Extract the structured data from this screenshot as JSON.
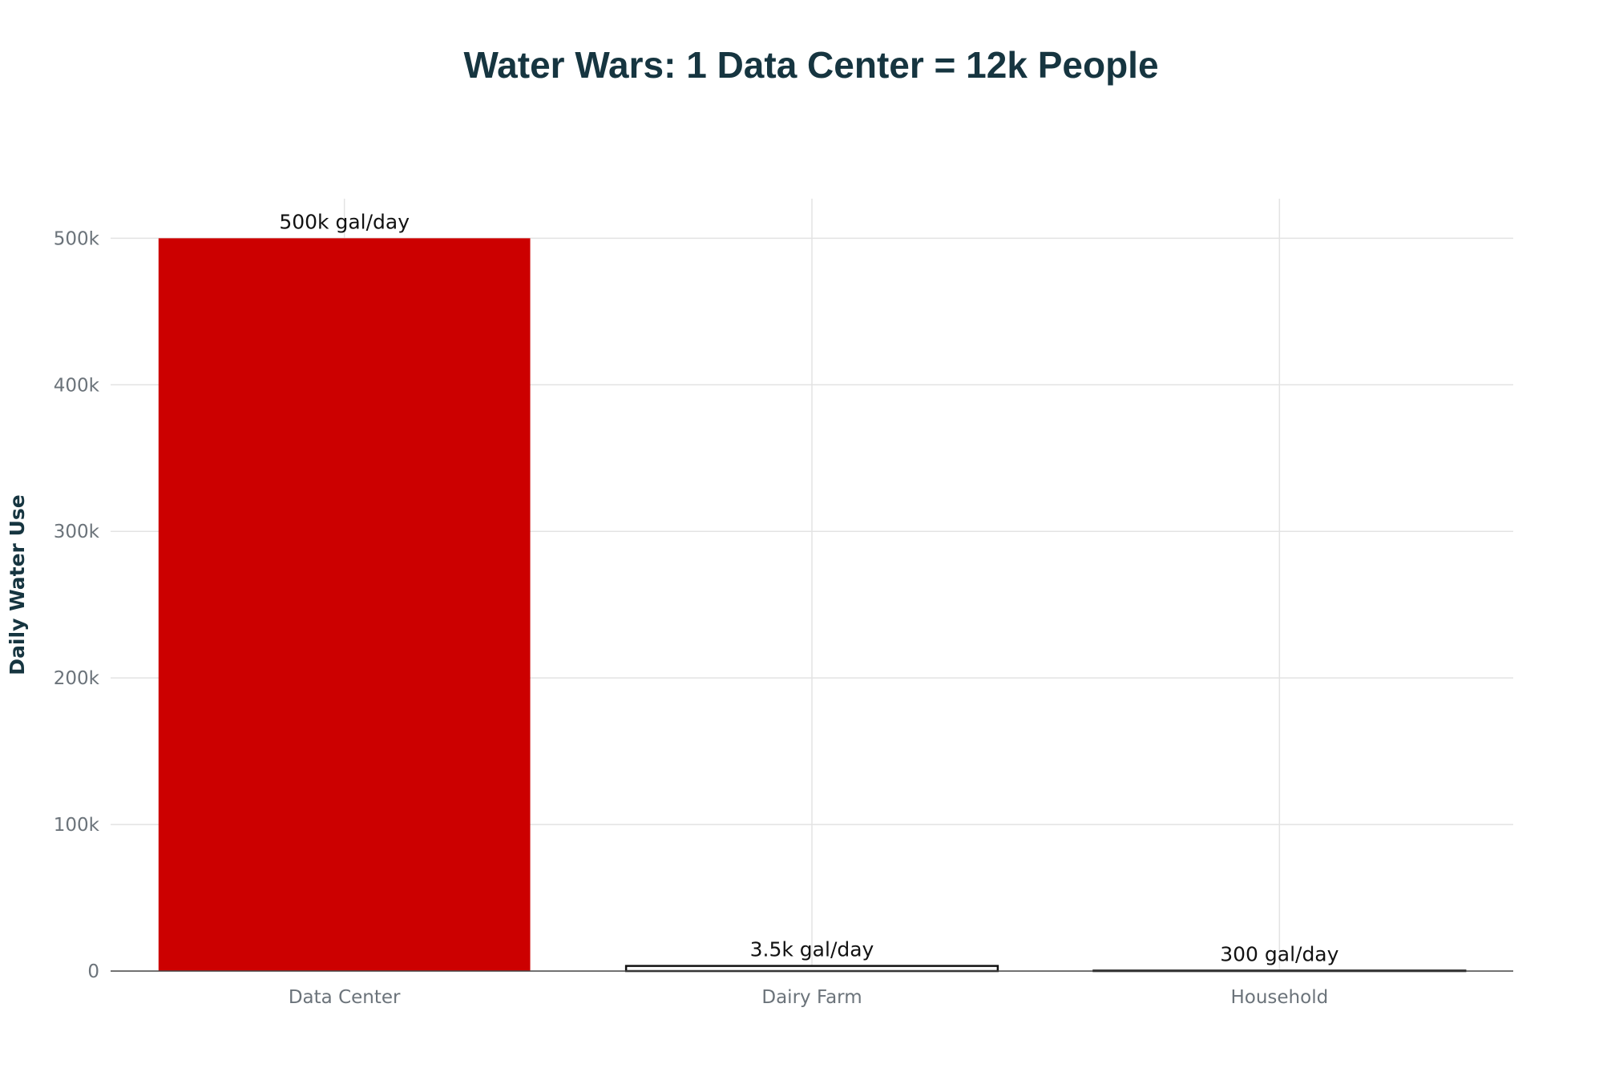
{
  "chart_data": {
    "type": "bar",
    "title": "Water Wars: 1 Data Center = 12k People",
    "xlabel": "",
    "ylabel": "Daily Water Use",
    "categories": [
      "Data Center",
      "Dairy Farm",
      "Household"
    ],
    "values": [
      500000,
      3500,
      300
    ],
    "data_labels": [
      "500k gal/day",
      "3.5k gal/day",
      "300 gal/day"
    ],
    "bar_colors": [
      "#cc0000",
      "#ffffff",
      "#ffffff"
    ],
    "bar_outline_colors": [
      "#cc0000",
      "#111111",
      "#111111"
    ],
    "ylim": [
      0,
      527000
    ],
    "yticks": [
      0,
      100000,
      200000,
      300000,
      400000,
      500000
    ],
    "ytick_labels": [
      "0",
      "100k",
      "200k",
      "300k",
      "400k",
      "500k"
    ],
    "grid": true,
    "legend": "none"
  }
}
